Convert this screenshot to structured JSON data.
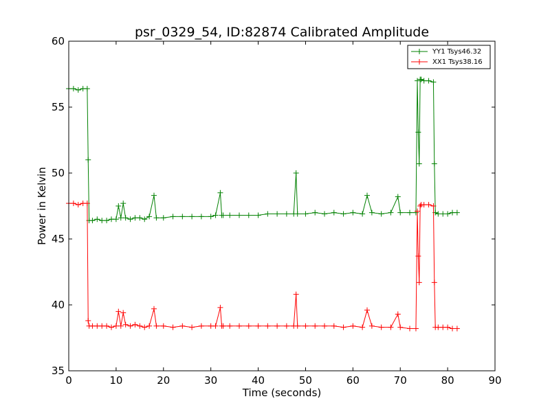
{
  "chart_data": {
    "type": "line",
    "title": "psr_0329_54, ID:82874 Calibrated Amplitude",
    "xlabel": "Time (seconds)",
    "ylabel": "Power in Kelvin",
    "xlim": [
      0,
      90
    ],
    "ylim": [
      35,
      60
    ],
    "xticks": [
      0,
      10,
      20,
      30,
      40,
      50,
      60,
      70,
      80,
      90
    ],
    "yticks": [
      35,
      40,
      45,
      50,
      55,
      60
    ],
    "xtick_labels": [
      "0",
      "10",
      "20",
      "30",
      "40",
      "50",
      "60",
      "70",
      "80",
      "90"
    ],
    "ytick_labels": [
      "35",
      "40",
      "45",
      "50",
      "55",
      "60"
    ],
    "grid": false,
    "legend_position": "top-right",
    "marker": "+",
    "series": [
      {
        "name": "YY1 Tsys46.32",
        "color": "#008000",
        "x": [
          0,
          1,
          2,
          3,
          3.9,
          4.1,
          4.3,
          5,
          6,
          7,
          8,
          9,
          10,
          10.5,
          11,
          11.5,
          12,
          13,
          14,
          15,
          16,
          17,
          18,
          18.5,
          20,
          22,
          24,
          26,
          28,
          30,
          31,
          32,
          32.3,
          32.6,
          34,
          36,
          38,
          40,
          42,
          44,
          46,
          47.5,
          48,
          48.3,
          50,
          52,
          54,
          56,
          58,
          60,
          62,
          63,
          64,
          66,
          68,
          69.5,
          70,
          72,
          73.3,
          73.6,
          73.8,
          74,
          74.2,
          74.4,
          75,
          76,
          77,
          77.2,
          77.4,
          78,
          79,
          80,
          81,
          82
        ],
        "y": [
          56.4,
          56.4,
          56.3,
          56.4,
          56.4,
          51.0,
          46.4,
          46.4,
          46.5,
          46.4,
          46.4,
          46.5,
          46.5,
          47.5,
          46.6,
          47.7,
          46.6,
          46.5,
          46.6,
          46.6,
          46.5,
          46.7,
          48.3,
          46.6,
          46.6,
          46.7,
          46.7,
          46.7,
          46.7,
          46.7,
          46.8,
          48.5,
          46.8,
          46.8,
          46.8,
          46.8,
          46.8,
          46.8,
          46.9,
          46.9,
          46.9,
          46.9,
          50.0,
          46.9,
          46.9,
          47.0,
          46.9,
          47.0,
          46.9,
          47.0,
          46.9,
          48.3,
          47.0,
          46.9,
          47.0,
          48.2,
          47.0,
          47.0,
          47.0,
          57.0,
          53.1,
          50.7,
          57.1,
          57.1,
          57.0,
          57.0,
          56.9,
          50.7,
          47.0,
          46.9,
          46.9,
          46.9,
          47.0,
          47.0
        ]
      },
      {
        "name": "XX1 Tsys38.16",
        "color": "#ff0000",
        "x": [
          0,
          1,
          2,
          3,
          3.9,
          4.1,
          4.3,
          5,
          6,
          7,
          8,
          9,
          10,
          10.5,
          11,
          11.5,
          12,
          13,
          14,
          15,
          16,
          17,
          18,
          18.5,
          20,
          22,
          24,
          26,
          28,
          30,
          31,
          32,
          32.3,
          32.6,
          34,
          36,
          38,
          40,
          42,
          44,
          46,
          47.5,
          48,
          48.3,
          50,
          52,
          54,
          56,
          58,
          60,
          62,
          63,
          64,
          66,
          68,
          69.5,
          70,
          72,
          73.3,
          73.6,
          73.8,
          74,
          74.2,
          74.4,
          75,
          76,
          77,
          77.2,
          77.4,
          78,
          79,
          80,
          81,
          82
        ],
        "y": [
          47.7,
          47.7,
          47.6,
          47.7,
          47.7,
          38.8,
          38.4,
          38.4,
          38.4,
          38.4,
          38.4,
          38.3,
          38.4,
          39.5,
          38.4,
          39.4,
          38.5,
          38.4,
          38.5,
          38.4,
          38.3,
          38.4,
          39.7,
          38.4,
          38.4,
          38.3,
          38.4,
          38.3,
          38.4,
          38.4,
          38.4,
          39.8,
          38.4,
          38.4,
          38.4,
          38.4,
          38.4,
          38.4,
          38.4,
          38.4,
          38.4,
          38.4,
          40.8,
          38.4,
          38.4,
          38.4,
          38.4,
          38.4,
          38.3,
          38.4,
          38.3,
          39.6,
          38.4,
          38.3,
          38.3,
          39.3,
          38.3,
          38.2,
          38.2,
          47.1,
          43.7,
          41.7,
          47.5,
          47.6,
          47.6,
          47.6,
          47.5,
          41.7,
          38.3,
          38.3,
          38.3,
          38.3,
          38.2,
          38.2
        ]
      }
    ]
  }
}
